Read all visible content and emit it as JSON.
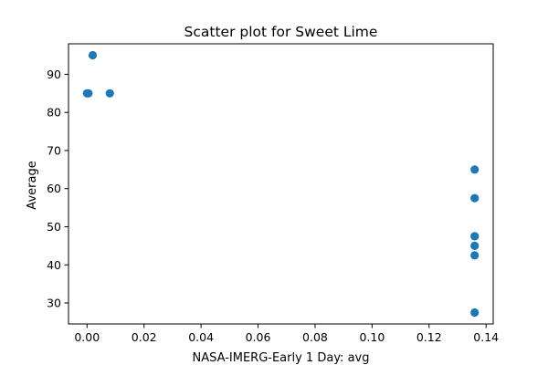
{
  "chart_data": {
    "type": "scatter",
    "title": "Scatter plot for Sweet Lime",
    "xlabel": "NASA-IMERG-Early 1 Day: avg",
    "ylabel": "Average",
    "xlim": [
      -0.0065,
      0.1425
    ],
    "ylim": [
      24.5,
      98.0
    ],
    "xticks": [
      0.0,
      0.02,
      0.04,
      0.06,
      0.08,
      0.1,
      0.12,
      0.14
    ],
    "xtick_labels": [
      "0.00",
      "0.02",
      "0.04",
      "0.06",
      "0.08",
      "0.10",
      "0.12",
      "0.14"
    ],
    "yticks": [
      30,
      40,
      50,
      60,
      70,
      80,
      90
    ],
    "ytick_labels": [
      "30",
      "40",
      "50",
      "60",
      "70",
      "80",
      "90"
    ],
    "grid": false,
    "marker_color": "#1f77b4",
    "points": [
      {
        "x": 0.0,
        "y": 85.0
      },
      {
        "x": 0.0005,
        "y": 85.0
      },
      {
        "x": 0.002,
        "y": 95.0
      },
      {
        "x": 0.008,
        "y": 85.0
      },
      {
        "x": 0.136,
        "y": 65.0
      },
      {
        "x": 0.136,
        "y": 57.5
      },
      {
        "x": 0.136,
        "y": 47.5
      },
      {
        "x": 0.136,
        "y": 47.5
      },
      {
        "x": 0.136,
        "y": 45.0
      },
      {
        "x": 0.136,
        "y": 42.5
      },
      {
        "x": 0.136,
        "y": 27.5
      }
    ]
  }
}
